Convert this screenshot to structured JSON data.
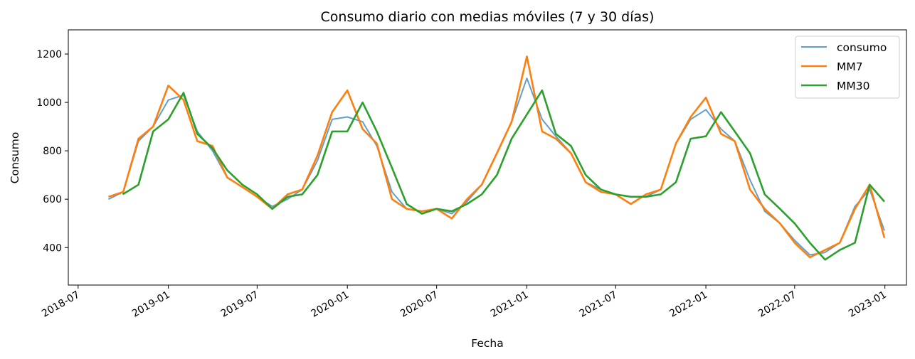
{
  "chart_data": {
    "type": "line",
    "title": "Consumo diario con medias móviles (7 y 30 días)",
    "xlabel": "Fecha",
    "ylabel": "Consumo",
    "x_range": [
      "2018-06-11",
      "2023-02-14"
    ],
    "ylim": [
      245,
      1300
    ],
    "x_ticks": [
      "2018-07",
      "2019-01",
      "2019-07",
      "2020-01",
      "2020-07",
      "2021-01",
      "2021-07",
      "2022-01",
      "2022-07",
      "2023-01"
    ],
    "y_ticks": [
      400,
      600,
      800,
      1000,
      1200
    ],
    "grid": false,
    "legend_position": "top-right",
    "series": [
      {
        "name": "consumo",
        "color": "#1f77b4",
        "opacity": 0.7,
        "x": [
          "2018-09-01",
          "2018-10-01",
          "2018-11-01",
          "2018-12-01",
          "2019-01-01",
          "2019-02-01",
          "2019-03-01",
          "2019-04-01",
          "2019-05-01",
          "2019-06-01",
          "2019-07-01",
          "2019-08-01",
          "2019-09-01",
          "2019-10-01",
          "2019-11-01",
          "2019-12-01",
          "2020-01-01",
          "2020-02-01",
          "2020-03-01",
          "2020-04-01",
          "2020-05-01",
          "2020-06-01",
          "2020-07-01",
          "2020-08-01",
          "2020-09-01",
          "2020-10-01",
          "2020-11-01",
          "2020-12-01",
          "2021-01-01",
          "2021-02-01",
          "2021-03-01",
          "2021-04-01",
          "2021-05-01",
          "2021-06-01",
          "2021-07-01",
          "2021-08-01",
          "2021-09-01",
          "2021-10-01",
          "2021-11-01",
          "2021-12-01",
          "2022-01-01",
          "2022-02-01",
          "2022-03-01",
          "2022-04-01",
          "2022-05-01",
          "2022-06-01",
          "2022-07-01",
          "2022-08-01",
          "2022-09-01",
          "2022-10-01",
          "2022-11-01",
          "2022-12-01",
          "2022-12-31"
        ],
        "values": [
          600,
          630,
          840,
          900,
          1010,
          1030,
          880,
          800,
          690,
          650,
          610,
          570,
          600,
          640,
          760,
          930,
          940,
          920,
          820,
          630,
          560,
          550,
          560,
          540,
          590,
          660,
          790,
          920,
          1100,
          930,
          860,
          790,
          670,
          640,
          620,
          610,
          610,
          640,
          830,
          930,
          970,
          890,
          840,
          680,
          550,
          500,
          430,
          370,
          380,
          420,
          570,
          640,
          470
        ]
      },
      {
        "name": "MM7",
        "color": "#ff7f0e",
        "opacity": 1,
        "x": [
          "2018-09-01",
          "2018-10-01",
          "2018-11-01",
          "2018-12-01",
          "2019-01-01",
          "2019-02-01",
          "2019-03-01",
          "2019-04-01",
          "2019-05-01",
          "2019-06-01",
          "2019-07-01",
          "2019-08-01",
          "2019-09-01",
          "2019-10-01",
          "2019-11-01",
          "2019-12-01",
          "2020-01-01",
          "2020-02-01",
          "2020-03-01",
          "2020-04-01",
          "2020-05-01",
          "2020-06-01",
          "2020-07-01",
          "2020-08-01",
          "2020-09-01",
          "2020-10-01",
          "2020-11-01",
          "2020-12-01",
          "2021-01-01",
          "2021-02-01",
          "2021-03-01",
          "2021-04-01",
          "2021-05-01",
          "2021-06-01",
          "2021-07-01",
          "2021-08-01",
          "2021-09-01",
          "2021-10-01",
          "2021-11-01",
          "2021-12-01",
          "2022-01-01",
          "2022-02-01",
          "2022-03-01",
          "2022-04-01",
          "2022-05-01",
          "2022-06-01",
          "2022-07-01",
          "2022-08-01",
          "2022-09-01",
          "2022-10-01",
          "2022-11-01",
          "2022-12-01",
          "2022-12-31"
        ],
        "values": [
          610,
          630,
          850,
          900,
          1070,
          1010,
          840,
          820,
          690,
          650,
          610,
          560,
          620,
          640,
          780,
          960,
          1050,
          890,
          830,
          600,
          560,
          550,
          560,
          520,
          600,
          660,
          790,
          920,
          1190,
          880,
          850,
          790,
          670,
          630,
          620,
          580,
          620,
          640,
          830,
          940,
          1020,
          870,
          840,
          640,
          560,
          500,
          420,
          360,
          390,
          420,
          560,
          660,
          440
        ]
      },
      {
        "name": "MM30",
        "color": "#2ca02c",
        "opacity": 1,
        "x": [
          "2018-09-30",
          "2018-11-01",
          "2018-12-01",
          "2019-01-01",
          "2019-02-01",
          "2019-03-01",
          "2019-04-01",
          "2019-05-01",
          "2019-06-01",
          "2019-07-01",
          "2019-08-01",
          "2019-09-01",
          "2019-10-01",
          "2019-11-01",
          "2019-12-01",
          "2020-01-01",
          "2020-02-01",
          "2020-03-01",
          "2020-04-01",
          "2020-05-01",
          "2020-06-01",
          "2020-07-01",
          "2020-08-01",
          "2020-09-01",
          "2020-10-01",
          "2020-11-01",
          "2020-12-01",
          "2021-01-01",
          "2021-02-01",
          "2021-03-01",
          "2021-04-01",
          "2021-05-01",
          "2021-06-01",
          "2021-07-01",
          "2021-08-01",
          "2021-09-01",
          "2021-10-01",
          "2021-11-01",
          "2021-12-01",
          "2022-01-01",
          "2022-02-01",
          "2022-03-01",
          "2022-04-01",
          "2022-05-01",
          "2022-06-01",
          "2022-07-01",
          "2022-08-01",
          "2022-09-01",
          "2022-10-01",
          "2022-11-01",
          "2022-12-01",
          "2022-12-31"
        ],
        "values": [
          620,
          660,
          880,
          930,
          1040,
          870,
          810,
          720,
          660,
          620,
          560,
          610,
          620,
          700,
          880,
          880,
          1000,
          880,
          730,
          580,
          540,
          560,
          550,
          580,
          620,
          700,
          850,
          950,
          1050,
          870,
          820,
          700,
          640,
          620,
          610,
          610,
          620,
          670,
          850,
          860,
          960,
          880,
          790,
          620,
          560,
          500,
          420,
          350,
          390,
          420,
          660,
          590
        ]
      }
    ]
  }
}
